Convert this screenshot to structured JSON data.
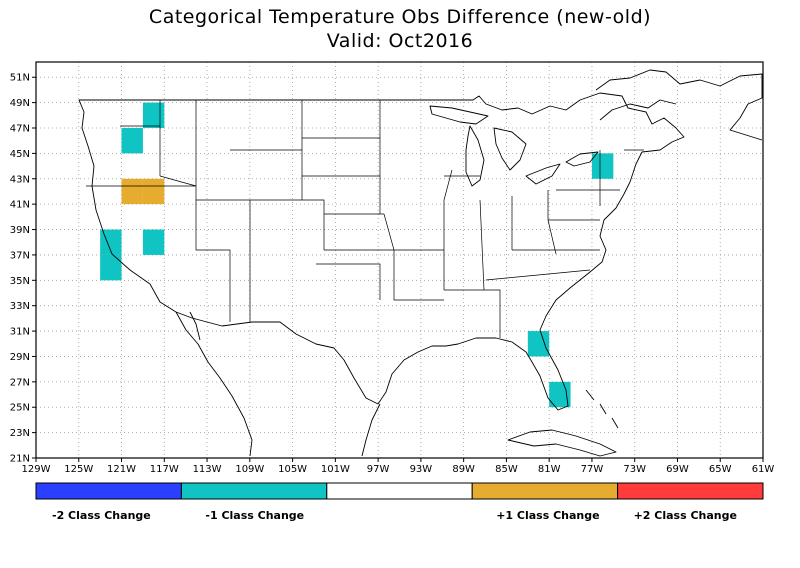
{
  "title": "Categorical Temperature Obs Difference (new-old)",
  "subtitle": "Valid: Oct2016",
  "map": {
    "lon_ticks": [
      "129W",
      "125W",
      "121W",
      "117W",
      "113W",
      "109W",
      "105W",
      "101W",
      "97W",
      "93W",
      "89W",
      "85W",
      "81W",
      "77W",
      "73W",
      "69W",
      "65W",
      "61W"
    ],
    "lat_ticks": [
      "21N",
      "23N",
      "25N",
      "27N",
      "29N",
      "31N",
      "33N",
      "35N",
      "37N",
      "39N",
      "41N",
      "43N",
      "45N",
      "47N",
      "49N",
      "51N"
    ],
    "cells": [
      {
        "lon": -118,
        "lat": 48,
        "category": "-1"
      },
      {
        "lon": -120,
        "lat": 46,
        "category": "-1"
      },
      {
        "lon": -120,
        "lat": 42,
        "category": "+1"
      },
      {
        "lon": -118,
        "lat": 42,
        "category": "+1"
      },
      {
        "lon": -122,
        "lat": 38,
        "category": "-1"
      },
      {
        "lon": -122,
        "lat": 36,
        "category": "-1"
      },
      {
        "lon": -118,
        "lat": 38,
        "category": "-1"
      },
      {
        "lon": -76,
        "lat": 44,
        "category": "-1"
      },
      {
        "lon": -82,
        "lat": 30,
        "category": "-1"
      },
      {
        "lon": -80,
        "lat": 26,
        "category": "-1"
      }
    ]
  },
  "legend": {
    "items": [
      {
        "category": "-2",
        "label": "-2 Class Change",
        "color": "#2a3fff"
      },
      {
        "category": "-1",
        "label": "-1 Class Change",
        "color": "#10c4c4"
      },
      {
        "category": "0",
        "label": "",
        "color": "#ffffff"
      },
      {
        "category": "+1",
        "label": "+1 Class Change",
        "color": "#e6ac30"
      },
      {
        "category": "+2",
        "label": "+2 Class Change",
        "color": "#ff3b3b"
      }
    ]
  }
}
